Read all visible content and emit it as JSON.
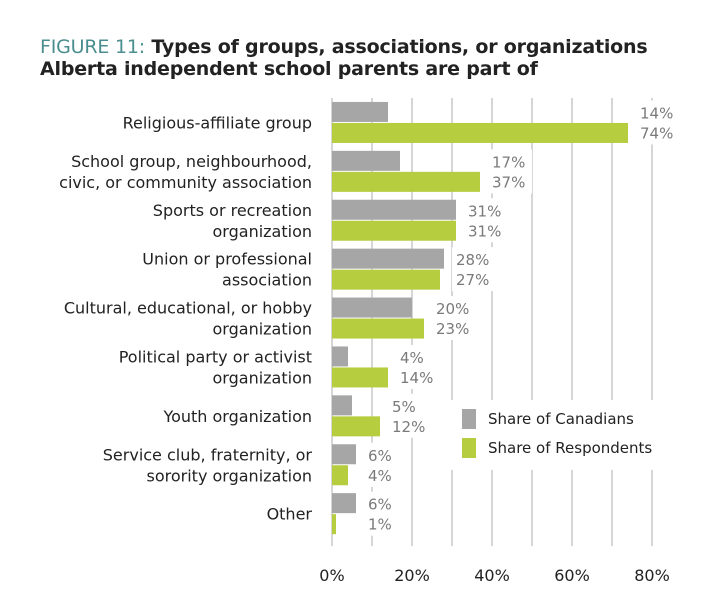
{
  "chart_data": {
    "type": "bar",
    "orientation": "horizontal",
    "title_prefix": "FIGURE 11:",
    "title": "Types of groups, associations, or organizations",
    "title_line2": "Alberta independent school parents are part of",
    "categories": [
      [
        "Religious-affiliate group"
      ],
      [
        "School group, neighbourhood,",
        "civic, or community association"
      ],
      [
        "Sports or recreation",
        "organization"
      ],
      [
        "Union or professional",
        "association"
      ],
      [
        "Cultural, educational, or hobby",
        "organization"
      ],
      [
        "Political party or activist",
        "organization"
      ],
      [
        "Youth organization"
      ],
      [
        "Service club, fraternity, or",
        "sorority organization"
      ],
      [
        "Other"
      ]
    ],
    "series": [
      {
        "name": "Share of Canadians",
        "color": "#a6a6a6",
        "values": [
          14,
          17,
          31,
          28,
          20,
          4,
          5,
          6,
          6
        ]
      },
      {
        "name": "Share of Respondents",
        "color": "#b5cd3e",
        "values": [
          74,
          37,
          31,
          27,
          23,
          14,
          12,
          4,
          1
        ]
      }
    ],
    "xlim": [
      0,
      80
    ],
    "xticks": [
      "0%",
      "20%",
      "40%",
      "60%",
      "80%"
    ],
    "grid": true,
    "legend_position": "right-middle"
  }
}
